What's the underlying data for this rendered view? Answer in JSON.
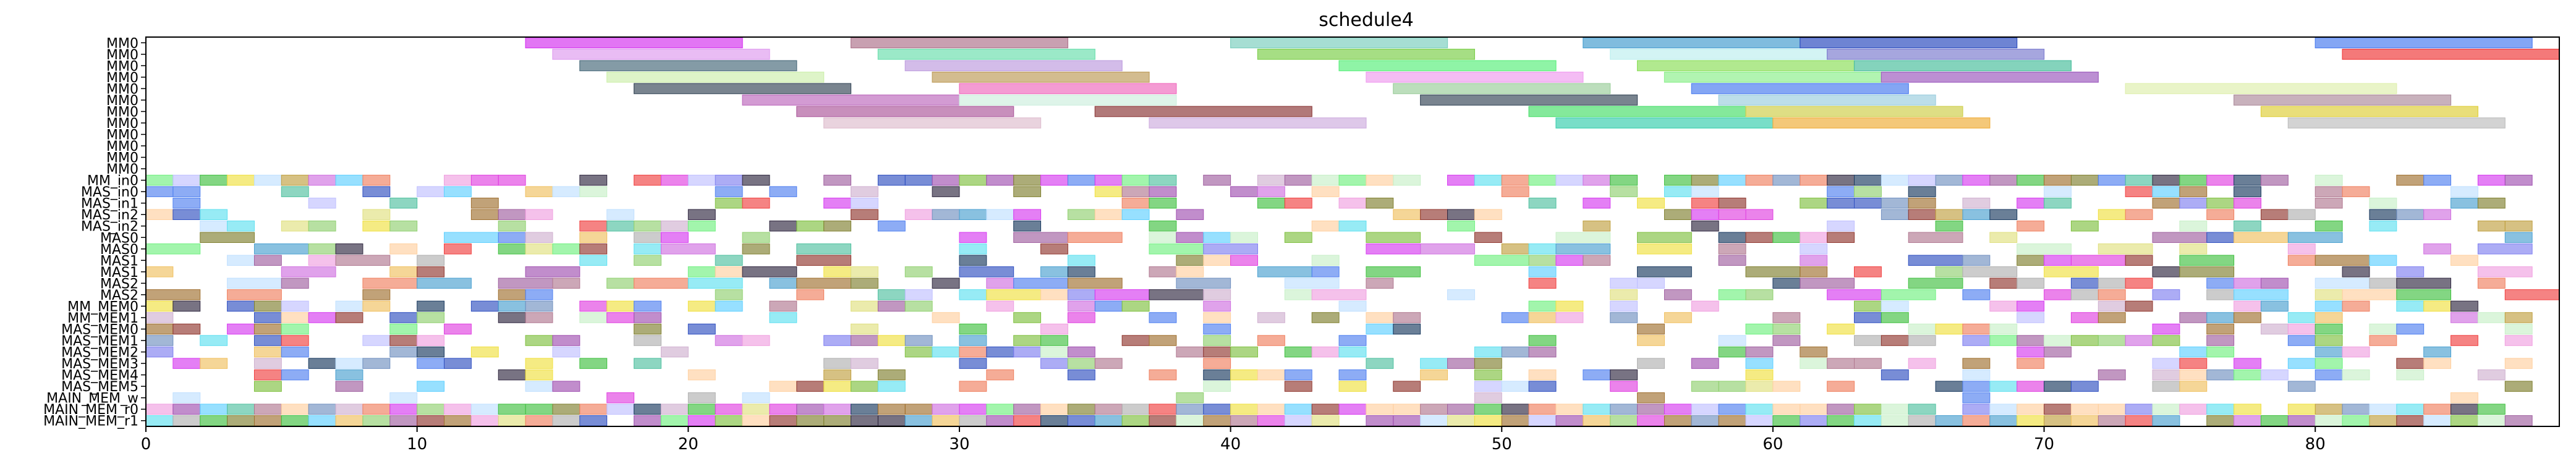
{
  "chart_data": {
    "type": "gantt",
    "title": "schedule4",
    "xlabel": "",
    "ylabel": "",
    "xlim": [
      0,
      89
    ],
    "grid": false,
    "legend": "none",
    "x_ticks": [
      0,
      10,
      20,
      30,
      40,
      50,
      60,
      70,
      80
    ],
    "rows": [
      "MM0",
      "MM0",
      "MM0",
      "MM0",
      "MM0",
      "MM0",
      "MM0",
      "MM0",
      "MM0",
      "MM0",
      "MM0",
      "MM0",
      "MM_in0",
      "MAS_in0",
      "MAS_in1",
      "MAS_in2",
      "MAS_in2",
      "MAS0",
      "MAS0",
      "MAS1",
      "MAS1",
      "MAS2",
      "MAS2",
      "MM_MEM0",
      "MM_MEM1",
      "MAS_MEM0",
      "MAS_MEM1",
      "MAS_MEM2",
      "MAS_MEM3",
      "MAS_MEM4",
      "MAS_MEM5",
      "MAIN_MEM_w",
      "MAIN_MEM_r0",
      "MAIN_MEM_r1"
    ],
    "row_labels_drawn": [
      "MM0",
      "MM0",
      "MM0",
      "MM0",
      "MM0",
      "MM0",
      "MM0",
      "MM0",
      "MM0",
      "MM0",
      "MM0",
      "MM0",
      "MM_in0",
      "MAS_in0",
      "MAS_in1",
      "MAS_in2",
      "MAS_in2",
      "MAS0",
      "MAS0",
      "MAS1",
      "MAS1",
      "MAS2",
      "MAS2",
      "MM_MEM0",
      "MM_MEM1",
      "MAS_MEM0",
      "MAS_MEM1",
      "MAS_MEM2",
      "MAS_MEM3",
      "MAS_MEM4",
      "MAS_MEM5",
      "MAIN_MEM_w",
      "MAIN_MEM_r0",
      "MAIN_MEM_r1"
    ],
    "palette": [
      "#d63af0",
      "#b07890",
      "#4aa0d0",
      "#3050c0",
      "#5080f0",
      "#f04040",
      "#d070e0",
      "#50c0a0",
      "#60d0ff",
      "#80c040",
      "#70f080",
      "#1a3a60",
      "#c0a040",
      "#e040e0",
      "#a050b0",
      "#302840",
      "#f0a0e0",
      "#a07030",
      "#c8f0c8",
      "#a060a0",
      "#e0e080",
      "#903830",
      "#b0b0b0",
      "#60e0f0",
      "#40c040",
      "#d0b0d0",
      "#f0c060",
      "#8080f0",
      "#f08060",
      "#c0e0ff",
      "#7090c0",
      "#f0e040",
      "#90d070",
      "#808030",
      "#ffd0a0",
      "#c0c0ff"
    ],
    "bars": [
      {
        "row": 0,
        "start": 14,
        "end": 22,
        "color": "#d63af0"
      },
      {
        "row": 0,
        "start": 26,
        "end": 34,
        "color": "#b07890"
      },
      {
        "row": 0,
        "start": 40,
        "end": 48,
        "color": "#80d0c0"
      },
      {
        "row": 0,
        "start": 53,
        "end": 61,
        "color": "#4aa0d0"
      },
      {
        "row": 0,
        "start": 61,
        "end": 69,
        "color": "#3050c0"
      },
      {
        "row": 0,
        "start": 80,
        "end": 88,
        "color": "#5080f0"
      },
      {
        "row": 1,
        "start": 15,
        "end": 23,
        "color": "#e0a0f0"
      },
      {
        "row": 1,
        "start": 27,
        "end": 35,
        "color": "#70e0b0"
      },
      {
        "row": 1,
        "start": 41,
        "end": 49,
        "color": "#80d050"
      },
      {
        "row": 1,
        "start": 54,
        "end": 62,
        "color": "#c0f0f0"
      },
      {
        "row": 1,
        "start": 62,
        "end": 70,
        "color": "#8080d0"
      },
      {
        "row": 1,
        "start": 81,
        "end": 89,
        "color": "#f04040"
      },
      {
        "row": 2,
        "start": 16,
        "end": 24,
        "color": "#507080"
      },
      {
        "row": 2,
        "start": 28,
        "end": 36,
        "color": "#c0a0e0"
      },
      {
        "row": 2,
        "start": 44,
        "end": 52,
        "color": "#60f080"
      },
      {
        "row": 2,
        "start": 55,
        "end": 63,
        "color": "#90e060"
      },
      {
        "row": 2,
        "start": 63,
        "end": 71,
        "color": "#50c0a0"
      },
      {
        "row": 3,
        "start": 17,
        "end": 25,
        "color": "#d0f0b0"
      },
      {
        "row": 3,
        "start": 29,
        "end": 37,
        "color": "#c0a060"
      },
      {
        "row": 3,
        "start": 45,
        "end": 53,
        "color": "#f0a0f0"
      },
      {
        "row": 3,
        "start": 56,
        "end": 64,
        "color": "#90f090"
      },
      {
        "row": 3,
        "start": 64,
        "end": 72,
        "color": "#a060c0"
      },
      {
        "row": 4,
        "start": 18,
        "end": 26,
        "color": "#405060"
      },
      {
        "row": 4,
        "start": 30,
        "end": 38,
        "color": "#f070c0"
      },
      {
        "row": 4,
        "start": 46,
        "end": 54,
        "color": "#a0d0a0"
      },
      {
        "row": 4,
        "start": 57,
        "end": 65,
        "color": "#5080f0"
      },
      {
        "row": 4,
        "start": 73,
        "end": 83,
        "color": "#e0f0b0"
      },
      {
        "row": 5,
        "start": 22,
        "end": 30,
        "color": "#c070c0"
      },
      {
        "row": 5,
        "start": 30,
        "end": 38,
        "color": "#d0f0e0"
      },
      {
        "row": 5,
        "start": 47,
        "end": 55,
        "color": "#405060"
      },
      {
        "row": 5,
        "start": 58,
        "end": 66,
        "color": "#a0d0e0"
      },
      {
        "row": 5,
        "start": 77,
        "end": 85,
        "color": "#b090a0"
      },
      {
        "row": 6,
        "start": 24,
        "end": 32,
        "color": "#b060a0"
      },
      {
        "row": 6,
        "start": 35,
        "end": 43,
        "color": "#904040"
      },
      {
        "row": 6,
        "start": 51,
        "end": 59,
        "color": "#50e070"
      },
      {
        "row": 6,
        "start": 59,
        "end": 67,
        "color": "#d0d050"
      },
      {
        "row": 6,
        "start": 78,
        "end": 86,
        "color": "#e0d040"
      },
      {
        "row": 7,
        "start": 25,
        "end": 33,
        "color": "#e0c0d0"
      },
      {
        "row": 7,
        "start": 37,
        "end": 45,
        "color": "#d0b0e0"
      },
      {
        "row": 7,
        "start": 52,
        "end": 60,
        "color": "#40d0b0"
      },
      {
        "row": 7,
        "start": 60,
        "end": 68,
        "color": "#f0b040"
      },
      {
        "row": 7,
        "start": 79,
        "end": 87,
        "color": "#c0c0c0"
      }
    ]
  }
}
